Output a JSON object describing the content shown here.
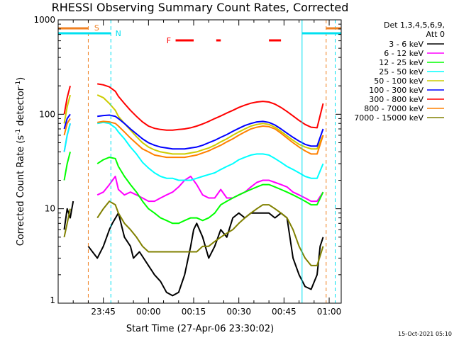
{
  "chart_data": {
    "type": "line",
    "title": "RHESSI Observing Summary Count Rates, Corrected",
    "xlabel": "Start Time (27-Apr-06 23:30:02)",
    "ylabel_parts": {
      "main": "Corrected Count Rate (s",
      "sup1": "-1",
      "mid": " detector",
      "sup2": "-1",
      "end": ")"
    },
    "yscale": "log",
    "ylim": [
      1,
      1000
    ],
    "xlim_minutes_after_start": [
      0,
      94
    ],
    "y_ticks": [
      {
        "value": 1,
        "label": "1"
      },
      {
        "value": 10,
        "label": "10"
      },
      {
        "value": 100,
        "label": "100"
      },
      {
        "value": 1000,
        "label": "1000"
      }
    ],
    "x_ticks": [
      {
        "minute": 15,
        "label": "23:45"
      },
      {
        "minute": 30,
        "label": "00:00"
      },
      {
        "minute": 45,
        "label": "00:15"
      },
      {
        "minute": 60,
        "label": "00:30"
      },
      {
        "minute": 75,
        "label": "00:45"
      },
      {
        "minute": 90,
        "label": "01:00"
      }
    ],
    "footer": "15-Oct-2021 05:10",
    "legend": {
      "header": [
        "Det 1,3,4,5,6,9,",
        "Att 0"
      ],
      "placement": "right"
    },
    "flags": {
      "S_label": "S",
      "N_label": "N",
      "F_label": "F",
      "S_color": "#f08020",
      "N_color": "#00e0f0",
      "F_color": "#ff0000",
      "S_lines_minutes": [
        10,
        89
      ],
      "N_lines_minutes": [
        17.5,
        81,
        92
      ],
      "F_segments_minutes": [
        [
          39,
          45
        ],
        [
          52.5,
          54
        ],
        [
          70,
          74
        ]
      ]
    },
    "series": [
      {
        "name": "3 - 6 keV",
        "color": "#000000",
        "x": [
          2,
          3,
          4,
          5,
          10,
          13,
          15,
          17,
          18,
          20,
          22,
          24,
          25,
          27,
          30,
          32,
          34,
          36,
          38,
          40,
          42,
          44,
          45,
          46,
          48,
          50,
          52,
          54,
          56,
          58,
          60,
          62,
          64,
          66,
          68,
          70,
          72,
          74,
          76,
          78,
          80,
          82,
          84,
          86,
          87,
          88
        ],
        "y": [
          6,
          10,
          8,
          12,
          4,
          3,
          4,
          6,
          7,
          9,
          5,
          4,
          3,
          3.5,
          2.5,
          2,
          1.7,
          1.3,
          1.2,
          1.3,
          2,
          4,
          6,
          7,
          5,
          3,
          4,
          6,
          5,
          8,
          9,
          8,
          9,
          9,
          9,
          9,
          8,
          9,
          8,
          3,
          2,
          1.5,
          1.4,
          2,
          4,
          5
        ]
      },
      {
        "name": "6 - 12 keV",
        "color": "#ff00ff",
        "x": [
          2,
          3,
          4,
          13,
          15,
          17,
          19,
          20,
          22,
          24,
          26,
          28,
          30,
          32,
          34,
          36,
          38,
          40,
          42,
          44,
          46,
          48,
          50,
          52,
          54,
          56,
          58,
          60,
          62,
          64,
          66,
          68,
          70,
          72,
          74,
          76,
          78,
          80,
          82,
          84,
          86,
          88
        ],
        "y": [
          40,
          60,
          80,
          14,
          15,
          18,
          22,
          16,
          14,
          15,
          14,
          13,
          12,
          12,
          13,
          14,
          15,
          17,
          20,
          22,
          18,
          14,
          13,
          13,
          16,
          13,
          13,
          14,
          15,
          17,
          19,
          20,
          20,
          19,
          18,
          17,
          15,
          14,
          13,
          12,
          12,
          15
        ]
      },
      {
        "name": "12 - 25 keV",
        "color": "#00ff00",
        "x": [
          2,
          3,
          4,
          13,
          15,
          17,
          19,
          20,
          22,
          24,
          26,
          28,
          30,
          32,
          34,
          36,
          38,
          40,
          42,
          44,
          46,
          48,
          50,
          52,
          54,
          56,
          58,
          60,
          62,
          64,
          66,
          68,
          70,
          72,
          74,
          76,
          78,
          80,
          82,
          84,
          86,
          88
        ],
        "y": [
          20,
          30,
          40,
          30,
          33,
          35,
          34,
          28,
          22,
          18,
          15,
          12,
          10,
          9,
          8,
          7.5,
          7,
          7,
          7.5,
          8,
          8,
          7.5,
          8,
          9,
          11,
          12,
          13,
          14,
          15,
          16,
          17,
          18,
          18,
          17,
          16,
          15,
          14,
          13,
          12,
          11,
          11,
          15
        ]
      },
      {
        "name": "25 - 50 keV",
        "color": "#00ffff",
        "x": [
          2,
          3,
          4,
          13,
          15,
          17,
          19,
          20,
          22,
          24,
          26,
          28,
          30,
          32,
          34,
          36,
          38,
          40,
          42,
          44,
          46,
          48,
          50,
          52,
          54,
          56,
          58,
          60,
          62,
          64,
          66,
          68,
          70,
          72,
          74,
          76,
          78,
          80,
          82,
          84,
          86,
          88
        ],
        "y": [
          40,
          60,
          80,
          80,
          82,
          80,
          72,
          65,
          55,
          45,
          38,
          31,
          27,
          24,
          22,
          21,
          21,
          20,
          20,
          20,
          21,
          22,
          23,
          24,
          26,
          28,
          30,
          33,
          35,
          37,
          38,
          38,
          37,
          34,
          31,
          28,
          26,
          24,
          22,
          21,
          21,
          30
        ]
      },
      {
        "name": "50 - 100 keV",
        "color": "#cccc00",
        "x": [
          2,
          3,
          4,
          13,
          15,
          17,
          19,
          20,
          22,
          24,
          26,
          28,
          30,
          32,
          34,
          36,
          38,
          40,
          42,
          44,
          46,
          48,
          50,
          52,
          54,
          56,
          58,
          60,
          62,
          64,
          66,
          68,
          70,
          72,
          74,
          76,
          78,
          80,
          82,
          84,
          86,
          88
        ],
        "y": [
          80,
          120,
          160,
          160,
          150,
          130,
          110,
          95,
          80,
          68,
          58,
          50,
          45,
          42,
          40,
          39,
          38,
          38,
          38,
          39,
          40,
          42,
          44,
          47,
          51,
          55,
          60,
          65,
          70,
          75,
          78,
          80,
          78,
          73,
          66,
          59,
          53,
          48,
          45,
          43,
          43,
          60
        ]
      },
      {
        "name": "100 - 300 keV",
        "color": "#0000ff",
        "x": [
          2,
          3,
          4,
          13,
          15,
          17,
          19,
          20,
          22,
          24,
          26,
          28,
          30,
          32,
          34,
          36,
          38,
          40,
          42,
          44,
          46,
          48,
          50,
          52,
          54,
          56,
          58,
          60,
          62,
          64,
          66,
          68,
          70,
          72,
          74,
          76,
          78,
          80,
          82,
          84,
          86,
          88
        ],
        "y": [
          70,
          90,
          100,
          95,
          97,
          98,
          95,
          90,
          80,
          70,
          62,
          55,
          50,
          47,
          45,
          44,
          43,
          43,
          43,
          44,
          45,
          47,
          50,
          53,
          57,
          61,
          66,
          71,
          76,
          80,
          83,
          84,
          82,
          77,
          70,
          63,
          57,
          52,
          48,
          46,
          46,
          70
        ]
      },
      {
        "name": "300 - 800 keV",
        "color": "#ff0000",
        "x": [
          2,
          3,
          4,
          13,
          15,
          17,
          19,
          20,
          22,
          24,
          26,
          28,
          30,
          32,
          34,
          36,
          38,
          40,
          42,
          44,
          46,
          48,
          50,
          52,
          54,
          56,
          58,
          60,
          62,
          64,
          66,
          68,
          70,
          72,
          74,
          76,
          78,
          80,
          82,
          84,
          86,
          88
        ],
        "y": [
          100,
          150,
          200,
          210,
          205,
          195,
          175,
          155,
          130,
          110,
          95,
          83,
          75,
          71,
          69,
          68,
          68,
          69,
          70,
          72,
          75,
          79,
          84,
          90,
          96,
          103,
          110,
          118,
          125,
          131,
          135,
          137,
          135,
          128,
          118,
          107,
          96,
          86,
          78,
          73,
          72,
          130
        ]
      },
      {
        "name": "800 - 7000 keV",
        "color": "#ff8000",
        "x": [
          2,
          3,
          4,
          13,
          15,
          17,
          19,
          20,
          22,
          24,
          26,
          28,
          30,
          32,
          34,
          36,
          38,
          40,
          42,
          44,
          46,
          48,
          50,
          52,
          54,
          56,
          58,
          60,
          62,
          64,
          66,
          68,
          70,
          72,
          74,
          76,
          78,
          80,
          82,
          84,
          86,
          88
        ],
        "y": [
          60,
          80,
          90,
          82,
          84,
          83,
          80,
          75,
          65,
          56,
          49,
          43,
          40,
          37,
          36,
          35,
          35,
          35,
          35,
          36,
          37,
          39,
          41,
          44,
          47,
          51,
          55,
          60,
          65,
          70,
          73,
          75,
          74,
          70,
          63,
          56,
          50,
          45,
          41,
          38,
          38,
          60
        ]
      },
      {
        "name": "7000 - 15000 keV",
        "color": "#808000",
        "x": [
          2,
          3,
          4,
          13,
          15,
          17,
          19,
          20,
          22,
          24,
          26,
          28,
          30,
          32,
          34,
          36,
          38,
          40,
          42,
          44,
          46,
          48,
          50,
          52,
          54,
          56,
          58,
          60,
          62,
          64,
          66,
          68,
          70,
          72,
          74,
          76,
          78,
          80,
          82,
          84,
          86,
          88
        ],
        "y": [
          5,
          7,
          10,
          8,
          10,
          12,
          11,
          9,
          7,
          6,
          5,
          4,
          3.5,
          3.5,
          3.5,
          3.5,
          3.5,
          3.5,
          3.5,
          3.5,
          3.5,
          4,
          4,
          4.5,
          5,
          5.5,
          6,
          7,
          8,
          9,
          10,
          11,
          11,
          10,
          9,
          8,
          6,
          4,
          3,
          2.5,
          2.5,
          4
        ]
      }
    ]
  }
}
